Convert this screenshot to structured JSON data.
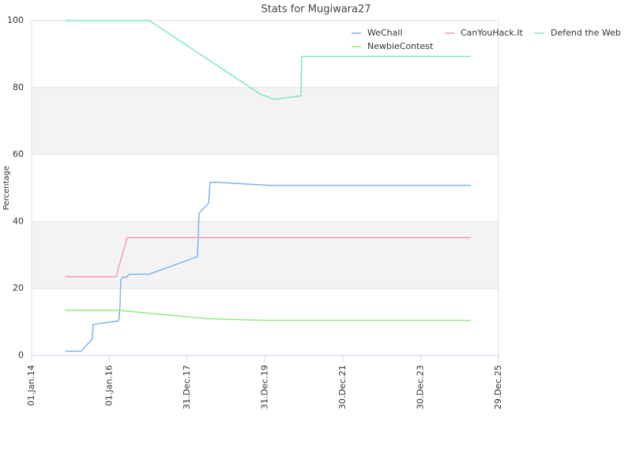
{
  "chart_data": {
    "type": "line",
    "title": "Stats for Mugiwara27",
    "y_label": "Percentage",
    "xlim": [
      "2014-01-01",
      "2025-12-29"
    ],
    "xticks": [
      {
        "value": "2014-01-01",
        "label": "01.Jan.14"
      },
      {
        "value": "2016-01-01",
        "label": "01.Jan.16"
      },
      {
        "value": "2017-12-31",
        "label": "31.Dec.17"
      },
      {
        "value": "2019-12-31",
        "label": "31.Dec.19"
      },
      {
        "value": "2021-12-30",
        "label": "30.Dec.21"
      },
      {
        "value": "2023-12-30",
        "label": "30.Dec.23"
      },
      {
        "value": "2025-12-29",
        "label": "29.Dec.25"
      }
    ],
    "ylim": [
      0,
      100
    ],
    "yticks": [
      0,
      20,
      40,
      60,
      80,
      100
    ],
    "grid": true,
    "alternate_bands": true,
    "band_color": "#f3f3f3",
    "legend": "top-right",
    "series": [
      {
        "name": "WeChall",
        "color": "#7cb5ec",
        "x": [
          "2014-11-14",
          "2015-04-12",
          "2015-07-25",
          "2015-08-01",
          "2016-03-25",
          "2016-04-02",
          "2016-04-09",
          "2016-04-17",
          "2016-05-02",
          "2016-06-15",
          "2016-06-30",
          "2017-01-09",
          "2018-04-06",
          "2018-04-21",
          "2018-07-19",
          "2018-08-03",
          "2018-10-08",
          "2020-02-02",
          "2025-04-15"
        ],
        "values": [
          1.3,
          1.3,
          5,
          9.3,
          10.3,
          11.5,
          15,
          22.5,
          23.3,
          23.5,
          24.2,
          24.3,
          29.5,
          42.5,
          45.5,
          51.7,
          51.7,
          50.8,
          50.8
        ]
      },
      {
        "name": "CanYouHack.It",
        "color": "#f49ac4",
        "x": [
          "2014-11-14",
          "2016-03-03",
          "2016-06-15",
          "2025-04-15"
        ],
        "values": [
          23.5,
          23.5,
          35.2,
          35.2
        ]
      },
      {
        "name": "Defend the Web",
        "color": "#7de8c8",
        "x": [
          "2014-11-14",
          "2017-01-09",
          "2019-11-19",
          "2020-03-25",
          "2020-12-02",
          "2020-12-09",
          "2025-04-15"
        ],
        "values": [
          100,
          100,
          78,
          76.5,
          77.5,
          89.3,
          89.3
        ]
      },
      {
        "name": "NewbieContest",
        "color": "#90ed7d",
        "x": [
          "2014-11-14",
          "2016-03-25",
          "2018-07-04",
          "2020-01-03",
          "2025-04-15"
        ],
        "values": [
          13.5,
          13.5,
          11,
          10.5,
          10.5
        ]
      }
    ]
  }
}
